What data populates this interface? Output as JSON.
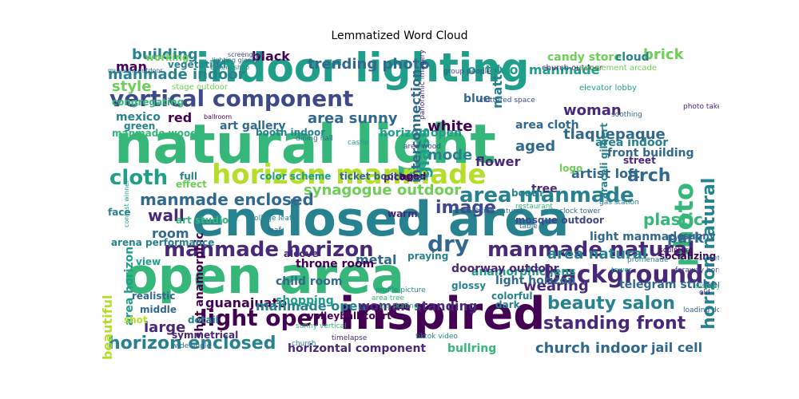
{
  "title": "Lemmatized Word Cloud",
  "colors": {
    "background": "#ffffff",
    "palette": [
      "#440154",
      "#482878",
      "#3e4989",
      "#31688e",
      "#26828e",
      "#1f9e89",
      "#35b779",
      "#6ece58",
      "#b5de2b",
      "#fde725"
    ]
  },
  "words": [
    "natural light",
    "indoor lighting",
    "enclosed area",
    "open area",
    "inspired",
    "horizon manmade",
    "vertical component",
    "photo",
    "horizon natural",
    "background",
    "manmade natural",
    "manmade horizon",
    "light open",
    "horizon enclosed",
    "cloth",
    "synagogue outdoor",
    "area manmade",
    "beauty salon",
    "standing front",
    "glass",
    "trending photo",
    "dry",
    "manmade enclosed",
    "building",
    "brick",
    "style",
    "manmade indoor",
    "wall",
    "area sunny",
    "image",
    "white",
    "woman",
    "arch",
    "plastic",
    "park",
    "room",
    "large",
    "guanajuato",
    "manmade open",
    "woman standing",
    "church indoor",
    "jail cell",
    "telegram sticker",
    "wearing",
    "light horizon",
    "anamorphic lens",
    "area natural",
    "metal",
    "throne room",
    "beautiful",
    "artist loft",
    "tlaquepaque",
    "area indoor",
    "aged",
    "mode",
    "black",
    "red",
    "man",
    "mexico",
    "art gallery",
    "flower",
    "tree",
    "blue",
    "matte",
    "candy store",
    "cloud",
    "front building",
    "area horizon",
    "horizontal component",
    "bullring",
    "shot anamorphic",
    "outdoor manmade",
    "area cloth",
    "horizon open",
    "light manmade",
    "doorway outdoor",
    "child room",
    "shopping",
    "symmetrical",
    "detail",
    "middle",
    "colorful",
    "dark",
    "praying",
    "volleyball court",
    "arena performance",
    "full",
    "effect",
    "color scheme",
    "ticket booth",
    "picture",
    "working",
    "vegetation",
    "congregating",
    "green",
    "manmade wood",
    "booth indoor",
    "interconnection",
    "araceli gilbert",
    "street",
    "sunny",
    "socializing",
    "logo",
    "warm",
    "booth",
    "aged",
    "mosque outdoor",
    "realistic",
    "shot",
    "alcove",
    "view",
    "face",
    "art studio",
    "glossy",
    "stage outdoor",
    "screengrab",
    "lighting glossy",
    "museum outdoor",
    "ballroom",
    "church outdoor",
    "amusement arcade",
    "elevator lobby",
    "group people",
    "cluttered space",
    "panoramic imagery",
    "area wood",
    "dining hall",
    "restaurant",
    "castle",
    "sculpture",
    "faraway horizon",
    "tower",
    "promenade",
    "clock tower",
    "bakery shop",
    "lighting natural",
    "sunny vertical",
    "wide angle",
    "ice skating",
    "tiktok video",
    "profile picture",
    "timelapse",
    "church",
    "color",
    "table",
    "soothing",
    "gas station",
    "photo taken",
    "area tree",
    "foliage leaf",
    "leaf",
    "street",
    "display",
    "old",
    "loading dock",
    "contest winner"
  ]
}
